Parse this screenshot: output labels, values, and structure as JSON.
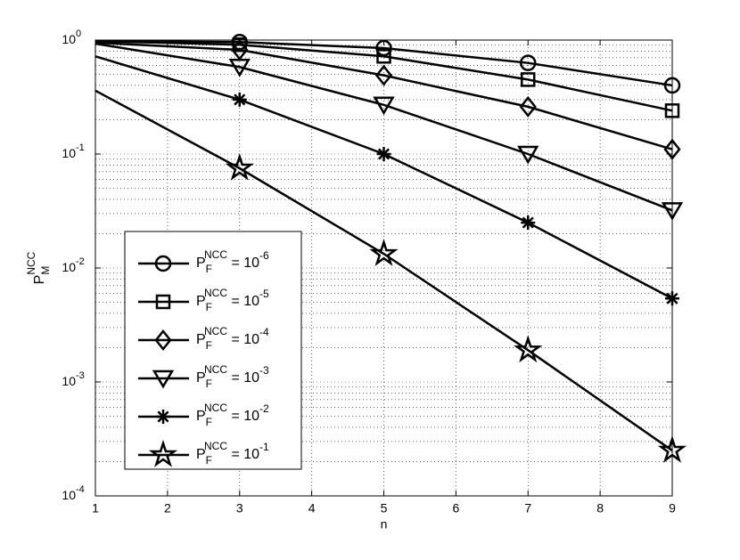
{
  "chart_data": {
    "type": "line",
    "log_y": true,
    "grid": true,
    "minor_grid": true,
    "x_label": "n",
    "y_label": {
      "base": "P",
      "sub": "M",
      "sup": "NCC"
    },
    "xlim": [
      1,
      9
    ],
    "xticks": [
      1,
      2,
      3,
      4,
      5,
      6,
      7,
      8,
      9
    ],
    "ylim": [
      0.0001,
      1
    ],
    "yticks": [
      {
        "value": 0.0001,
        "label": {
          "base": "10",
          "exp": "-4"
        }
      },
      {
        "value": 0.001,
        "label": {
          "base": "10",
          "exp": "-3"
        }
      },
      {
        "value": 0.01,
        "label": {
          "base": "10",
          "exp": "-2"
        }
      },
      {
        "value": 0.1,
        "label": {
          "base": "10",
          "exp": "-1"
        }
      },
      {
        "value": 1,
        "label": {
          "base": "10",
          "exp": "0"
        }
      }
    ],
    "legend_position": "lower-left",
    "x": [
      1,
      3,
      5,
      7,
      9
    ],
    "series": [
      {
        "name": {
          "base": "P",
          "sub": "F",
          "sup": "NCC",
          "rel": " = 10",
          "exp": "-6"
        },
        "color": "#000000",
        "marker": "circle",
        "values": [
          0.98,
          0.96,
          0.85,
          0.63,
          0.4
        ]
      },
      {
        "name": {
          "base": "P",
          "sub": "F",
          "sup": "NCC",
          "rel": " = 10",
          "exp": "-5"
        },
        "color": "#000000",
        "marker": "square",
        "values": [
          0.98,
          0.91,
          0.72,
          0.45,
          0.24
        ]
      },
      {
        "name": {
          "base": "P",
          "sub": "F",
          "sup": "NCC",
          "rel": " = 10",
          "exp": "-4"
        },
        "color": "#000000",
        "marker": "diamond",
        "values": [
          0.95,
          0.82,
          0.49,
          0.26,
          0.11
        ]
      },
      {
        "name": {
          "base": "P",
          "sub": "F",
          "sup": "NCC",
          "rel": " = 10",
          "exp": "-3"
        },
        "color": "#000000",
        "marker": "triangle-down",
        "values": [
          0.93,
          0.58,
          0.27,
          0.1,
          0.032
        ]
      },
      {
        "name": {
          "base": "P",
          "sub": "F",
          "sup": "NCC",
          "rel": " = 10",
          "exp": "-2"
        },
        "color": "#000000",
        "marker": "asterisk",
        "values": [
          0.72,
          0.3,
          0.1,
          0.025,
          0.0054
        ]
      },
      {
        "name": {
          "base": "P",
          "sub": "F",
          "sup": "NCC",
          "rel": " = 10",
          "exp": "-1"
        },
        "color": "#000000",
        "marker": "star",
        "values": [
          0.36,
          0.075,
          0.0133,
          0.0019,
          0.00025
        ]
      }
    ]
  }
}
